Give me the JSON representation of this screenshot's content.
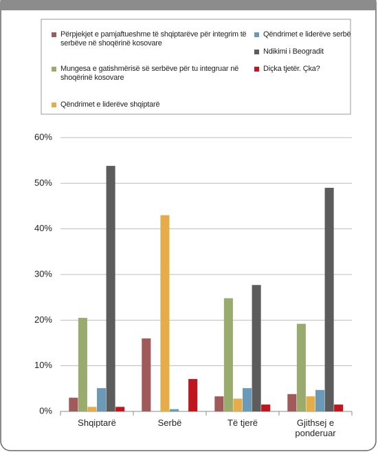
{
  "chart_data": {
    "type": "bar",
    "categories": [
      "Shqiptarë",
      "Serbë",
      "Të tjerë",
      "Gjithsej e ponderuar"
    ],
    "series": [
      {
        "name": "Përpjekjet e pamjaftueshme të shqiptarëve për integrim të serbëve në shoqërinë kosovare",
        "color": "#a05a5a",
        "values": [
          3,
          16,
          3.3,
          3.8
        ]
      },
      {
        "name": "Mungesa e gatishmërisë së serbëve për tu integruar në shoqërinë kosovare",
        "color": "#9aab6e",
        "values": [
          20.5,
          0,
          24.8,
          19.2
        ]
      },
      {
        "name": "Qëndrimet e liderëve shqiptarë",
        "color": "#e5ad4a",
        "values": [
          1,
          43,
          2.8,
          3.3
        ]
      },
      {
        "name": "Qëndrimet e liderëve serbë",
        "color": "#6a9ab8",
        "values": [
          5.1,
          0.5,
          5.1,
          4.7
        ]
      },
      {
        "name": "Ndikimi i Beogradit",
        "color": "#5c5c5c",
        "values": [
          53.8,
          0,
          27.7,
          49
        ]
      },
      {
        "name": "Diçka tjetër. Çka?",
        "color": "#c0171f",
        "values": [
          1,
          7.1,
          1.5,
          1.5
        ]
      }
    ],
    "ylim": [
      0,
      60
    ],
    "yticks": [
      {
        "value": 0,
        "label": "0%"
      },
      {
        "value": 10,
        "label": "10%"
      },
      {
        "value": 20,
        "label": "20%"
      },
      {
        "value": 30,
        "label": "30%"
      },
      {
        "value": 40,
        "label": "40%"
      },
      {
        "value": 50,
        "label": "50%"
      },
      {
        "value": 60,
        "label": "60%"
      }
    ],
    "grid": true
  }
}
